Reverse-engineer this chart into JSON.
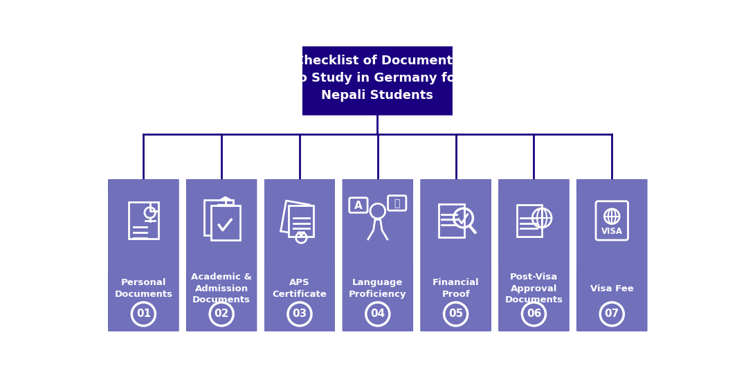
{
  "title_lines": [
    "Checklist of Documents",
    "to Study in Germany for",
    "Nepali Students"
  ],
  "title_bg": "#1a0080",
  "title_text_color": "#ffffff",
  "bg_color": "#ffffff",
  "line_color": "#1a0080",
  "card_top_color": "#7070bb",
  "card_bottom_color": "#0d0096",
  "card_text_color": "#ffffff",
  "figw": 10.65,
  "figh": 5.55,
  "categories": [
    {
      "label": "Personal\nDocuments",
      "number": "01"
    },
    {
      "label": "Academic &\nAdmission\nDocuments",
      "number": "02"
    },
    {
      "label": "APS\nCertificate",
      "number": "03"
    },
    {
      "label": "Language\nProficiency",
      "number": "04"
    },
    {
      "label": "Financial\nProof",
      "number": "05"
    },
    {
      "label": "Post-Visa\nApproval\nDocuments",
      "number": "06"
    },
    {
      "label": "Visa Fee",
      "number": "07"
    }
  ]
}
